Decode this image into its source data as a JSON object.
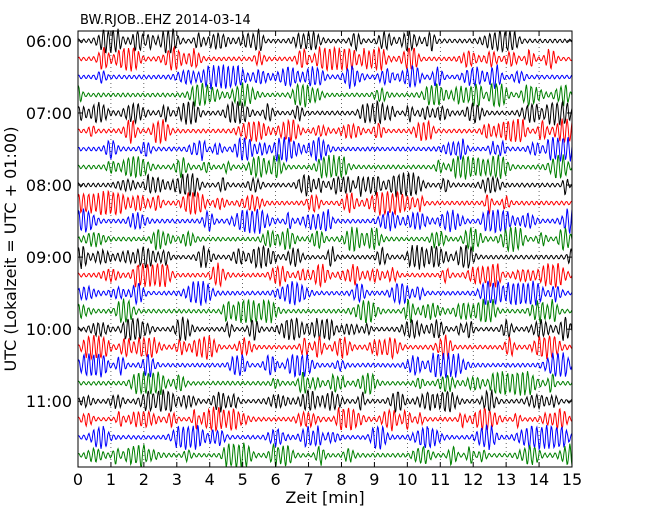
{
  "chart_data": {
    "type": "line",
    "title": "BW.RJOB..EHZ 2014-03-14",
    "xlabel": "Zeit  [min]",
    "ylabel": "UTC (Lokalzeit = UTC + 01:00)",
    "xlim": [
      0,
      15
    ],
    "x_ticks": [
      "0",
      "1",
      "2",
      "3",
      "4",
      "5",
      "6",
      "7",
      "8",
      "9",
      "10",
      "11",
      "12",
      "13",
      "14",
      "15"
    ],
    "y_ticks": [
      "06:00",
      "07:00",
      "08:00",
      "09:00",
      "10:00",
      "11:00"
    ],
    "grid": "vertical dotted",
    "trace_colors": [
      "#000000",
      "#ff0000",
      "#0000ff",
      "#008000"
    ],
    "series": [
      {
        "start": "06:00",
        "color": "#000000"
      },
      {
        "start": "06:15",
        "color": "#ff0000"
      },
      {
        "start": "06:30",
        "color": "#0000ff"
      },
      {
        "start": "06:45",
        "color": "#008000"
      },
      {
        "start": "07:00",
        "color": "#000000"
      },
      {
        "start": "07:15",
        "color": "#ff0000"
      },
      {
        "start": "07:30",
        "color": "#0000ff"
      },
      {
        "start": "07:45",
        "color": "#008000"
      },
      {
        "start": "08:00",
        "color": "#000000"
      },
      {
        "start": "08:15",
        "color": "#ff0000"
      },
      {
        "start": "08:30",
        "color": "#0000ff"
      },
      {
        "start": "08:45",
        "color": "#008000"
      },
      {
        "start": "09:00",
        "color": "#000000"
      },
      {
        "start": "09:15",
        "color": "#ff0000"
      },
      {
        "start": "09:30",
        "color": "#0000ff"
      },
      {
        "start": "09:45",
        "color": "#008000"
      },
      {
        "start": "10:00",
        "color": "#000000"
      },
      {
        "start": "10:15",
        "color": "#ff0000"
      },
      {
        "start": "10:30",
        "color": "#0000ff"
      },
      {
        "start": "10:45",
        "color": "#008000"
      },
      {
        "start": "11:00",
        "color": "#000000"
      },
      {
        "start": "11:15",
        "color": "#ff0000"
      },
      {
        "start": "11:30",
        "color": "#0000ff"
      },
      {
        "start": "11:45",
        "color": "#008000"
      }
    ]
  }
}
